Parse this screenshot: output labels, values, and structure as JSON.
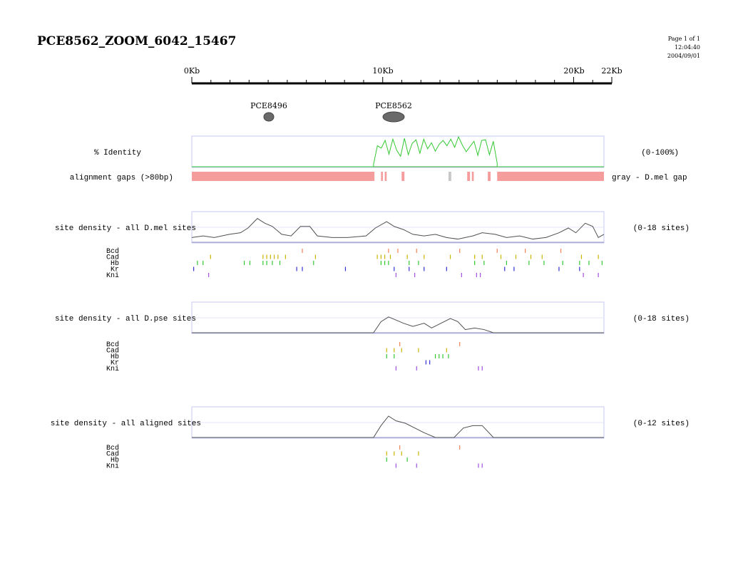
{
  "page": {
    "title": "PCE8562_ZOOM_6042_15467",
    "meta": [
      "Page 1 of 1",
      "12:04:40",
      "2004/09/01"
    ]
  },
  "ruler": {
    "labels": [
      {
        "text": "0Kb",
        "kb": 0
      },
      {
        "text": "10Kb",
        "kb": 10
      },
      {
        "text": "20Kb",
        "kb": 20
      },
      {
        "text": "22Kb",
        "kb": 22
      }
    ],
    "min_kb": 0,
    "max_kb": 22
  },
  "elements": [
    {
      "name": "PCE8496",
      "kb": 4.0,
      "size": "small"
    },
    {
      "name": "PCE8562",
      "kb": 10.5,
      "size": "large"
    }
  ],
  "identity": {
    "label": "% Identity",
    "range": "(0-100%)",
    "start_kb": 9.7,
    "end_kb": 16.3,
    "values": [
      8,
      70,
      62,
      88,
      42,
      92,
      55,
      35,
      95,
      40,
      78,
      90,
      45,
      92,
      60,
      80,
      52,
      75,
      88,
      70,
      92,
      65,
      100,
      72,
      50,
      68,
      85,
      38,
      88,
      90,
      40,
      85,
      12
    ]
  },
  "gaps": {
    "label": "alignment gaps (>80bp)",
    "legend": "gray - D.mel gap",
    "colors": {
      "normal": "#f59d9d",
      "mel": "#c8c8c8"
    },
    "segments": [
      {
        "s": 0,
        "e": 9.75,
        "c": "normal"
      },
      {
        "s": 10.1,
        "e": 10.2,
        "c": "normal"
      },
      {
        "s": 10.3,
        "e": 10.4,
        "c": "normal"
      },
      {
        "s": 11.2,
        "e": 11.35,
        "c": "normal"
      },
      {
        "s": 13.7,
        "e": 13.85,
        "c": "mel"
      },
      {
        "s": 14.7,
        "e": 14.85,
        "c": "normal"
      },
      {
        "s": 14.95,
        "e": 15.05,
        "c": "normal"
      },
      {
        "s": 15.8,
        "e": 15.95,
        "c": "normal"
      },
      {
        "s": 16.3,
        "e": 22,
        "c": "normal"
      }
    ]
  },
  "tf_colors": {
    "Bcd": "#f0855a",
    "Cad": "#c8b400",
    "Hb": "#32c832",
    "Kr": "#3232d0",
    "Kni": "#a050e0"
  },
  "tracks": [
    {
      "label": "site density - all D.mel sites",
      "range": "(0-18 sites)",
      "max": 18,
      "density": [
        [
          0,
          3
        ],
        [
          0.6,
          4
        ],
        [
          1.2,
          3
        ],
        [
          2,
          5
        ],
        [
          2.6,
          6
        ],
        [
          3.0,
          9
        ],
        [
          3.5,
          15
        ],
        [
          3.9,
          12
        ],
        [
          4.3,
          10
        ],
        [
          4.8,
          5
        ],
        [
          5.3,
          4
        ],
        [
          5.8,
          10
        ],
        [
          6.3,
          10
        ],
        [
          6.7,
          4
        ],
        [
          7.5,
          3
        ],
        [
          8.3,
          3
        ],
        [
          9.3,
          4
        ],
        [
          9.8,
          9
        ],
        [
          10.4,
          13
        ],
        [
          10.8,
          10
        ],
        [
          11.3,
          8
        ],
        [
          11.8,
          5
        ],
        [
          12.4,
          4
        ],
        [
          13.0,
          5
        ],
        [
          13.6,
          3
        ],
        [
          14.2,
          2
        ],
        [
          15.0,
          4
        ],
        [
          15.5,
          6
        ],
        [
          16.2,
          5
        ],
        [
          16.8,
          3
        ],
        [
          17.5,
          4
        ],
        [
          18.2,
          2
        ],
        [
          18.9,
          3
        ],
        [
          19.6,
          6
        ],
        [
          20.1,
          9
        ],
        [
          20.5,
          6
        ],
        [
          21.0,
          12
        ],
        [
          21.4,
          10
        ],
        [
          21.7,
          3
        ],
        [
          22,
          5
        ]
      ],
      "sites": {
        "Bcd": [
          5.9,
          10.5,
          11.0,
          12.0,
          14.3,
          16.3,
          17.8,
          19.7
        ],
        "Cad": [
          1.0,
          3.8,
          4.0,
          4.2,
          4.4,
          4.6,
          5.0,
          6.6,
          9.9,
          10.1,
          10.3,
          10.6,
          11.5,
          12.4,
          13.8,
          15.1,
          15.5,
          16.5,
          17.3,
          18.1,
          18.7,
          20.8,
          21.7
        ],
        "Hb": [
          0.3,
          0.6,
          2.8,
          3.1,
          3.8,
          4.0,
          4.3,
          4.7,
          6.5,
          10.1,
          10.3,
          10.5,
          11.6,
          12.1,
          15.1,
          15.6,
          16.8,
          18.0,
          18.8,
          19.8,
          20.7,
          21.2,
          21.9
        ],
        "Kr": [
          0.1,
          5.6,
          5.9,
          8.2,
          10.8,
          11.6,
          12.4,
          13.6,
          16.7,
          17.2,
          19.6,
          20.7
        ],
        "Kni": [
          0.9,
          10.9,
          11.9,
          14.4,
          15.2,
          15.4,
          20.9,
          21.7
        ]
      }
    },
    {
      "label": "site density - all D.pse sites",
      "range": "(0-18 sites)",
      "max": 18,
      "density": [
        [
          0,
          0
        ],
        [
          9.7,
          0
        ],
        [
          10.1,
          7
        ],
        [
          10.5,
          10
        ],
        [
          10.9,
          8
        ],
        [
          11.3,
          6
        ],
        [
          11.8,
          4
        ],
        [
          12.4,
          6
        ],
        [
          12.8,
          3
        ],
        [
          13.3,
          6
        ],
        [
          13.8,
          9
        ],
        [
          14.2,
          7
        ],
        [
          14.6,
          2
        ],
        [
          15.1,
          3
        ],
        [
          15.6,
          2
        ],
        [
          16.1,
          0
        ],
        [
          22,
          0
        ]
      ],
      "sites": {
        "Bcd": [
          11.1,
          14.3
        ],
        "Cad": [
          10.4,
          10.8,
          11.2,
          12.1,
          13.6
        ],
        "Hb": [
          10.4,
          10.8,
          13.0,
          13.2,
          13.4,
          13.7
        ],
        "Kr": [
          12.5,
          12.7
        ],
        "Kni": [
          10.9,
          12.0,
          15.3,
          15.5
        ]
      }
    },
    {
      "label": "site density - all aligned sites",
      "range": "(0-12 sites)",
      "max": 12,
      "density": [
        [
          0,
          0
        ],
        [
          9.7,
          0
        ],
        [
          10.1,
          5
        ],
        [
          10.5,
          9
        ],
        [
          10.9,
          7
        ],
        [
          11.4,
          6
        ],
        [
          11.9,
          4
        ],
        [
          12.4,
          2
        ],
        [
          13.0,
          0
        ],
        [
          14.0,
          0
        ],
        [
          14.5,
          4
        ],
        [
          15.0,
          5
        ],
        [
          15.5,
          5
        ],
        [
          16.1,
          0
        ],
        [
          22,
          0
        ]
      ],
      "sites": {
        "Bcd": [
          11.1,
          14.3
        ],
        "Cad": [
          10.4,
          10.8,
          11.2,
          12.1
        ],
        "Hb": [
          10.4,
          11.5
        ],
        "Kni": [
          10.9,
          12.0,
          15.3,
          15.5
        ]
      }
    }
  ]
}
